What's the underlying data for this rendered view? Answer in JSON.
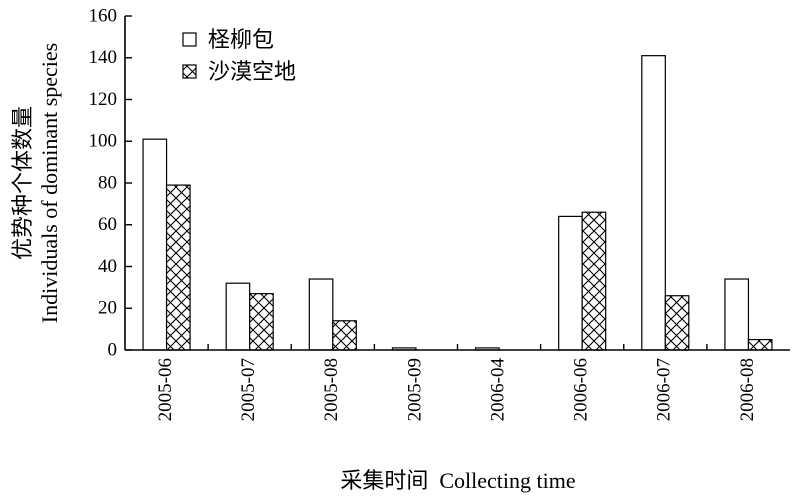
{
  "chart_data": {
    "type": "bar",
    "categories": [
      "2005-06",
      "2005-07",
      "2005-08",
      "2005-09",
      "2006-04",
      "2006-06",
      "2006-07",
      "2006-08"
    ],
    "series": [
      {
        "name": "柽柳包",
        "values": [
          101,
          32,
          34,
          1,
          1,
          64,
          141,
          34
        ],
        "fill": "white"
      },
      {
        "name": "沙漠空地",
        "values": [
          79,
          27,
          14,
          0,
          0,
          66,
          26,
          5
        ],
        "fill": "crosshatch"
      }
    ],
    "yticks": [
      "0",
      "20",
      "40",
      "60",
      "80",
      "100",
      "120",
      "140",
      "160"
    ],
    "ylim": [
      0,
      160
    ],
    "xlabel": "采集时间  Collecting time",
    "ylabel_cn": "优势种个体数量",
    "ylabel_en": "Individuals of dominant species",
    "legend_position": "top-left",
    "grid": false,
    "colors": {
      "axis": "#000000",
      "bar_fill": "#ffffff",
      "hatch": "#000000"
    }
  }
}
